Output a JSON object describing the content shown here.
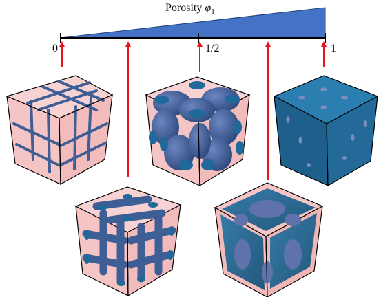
{
  "title": {
    "text": "Porosity",
    "symbol": "φ",
    "subscript": "1"
  },
  "ticks": [
    "0",
    "1/2",
    "1"
  ],
  "colors": {
    "wedge": "#4472c4",
    "arrow": "#e8141b",
    "box_face": "#f5c6c6",
    "structure": "#3d5f96",
    "solid": "#1f5f8b",
    "edge": "#000000"
  },
  "samples": [
    {
      "name": "lattice",
      "level": 0
    },
    {
      "name": "struts",
      "level": 0.25
    },
    {
      "name": "blobs",
      "level": 0.5
    },
    {
      "name": "holes",
      "level": 0.75
    },
    {
      "name": "solid",
      "level": 1
    }
  ]
}
